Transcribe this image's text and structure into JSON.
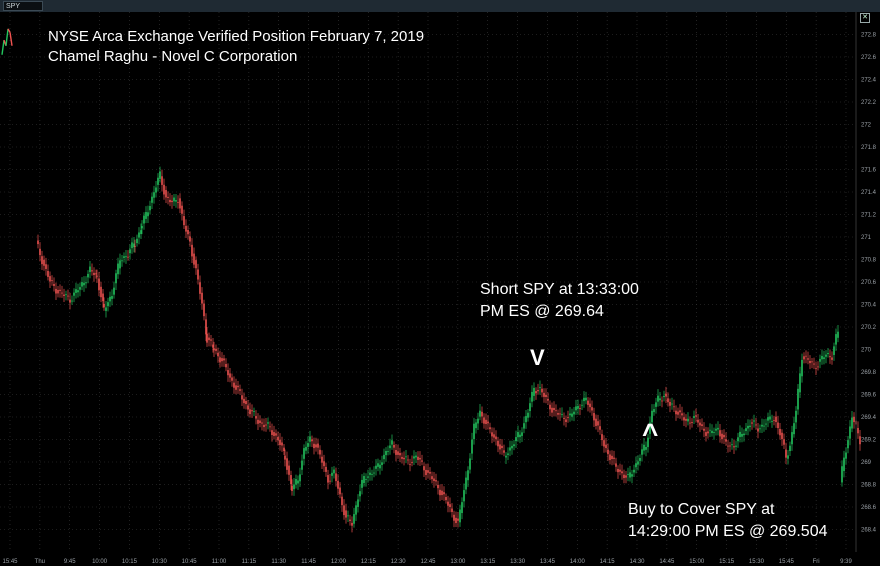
{
  "toolbar": {
    "symbol": "SPY"
  },
  "annotations": {
    "title_line1": "NYSE Arca Exchange Verified Position February 7, 2019",
    "title_line2": "Chamel Raghu - Novel C Corporation",
    "short_line1": "Short SPY at 13:33:00",
    "short_line2": "PM ES @ 269.64",
    "short_marker": "V",
    "cover_line1": "Buy to Cover SPY at",
    "cover_line2": "14:29:00 PM ES @ 269.504",
    "cover_marker": "^"
  },
  "colors": {
    "up": "#22c55e",
    "down": "#ef5350",
    "grid": "#3a3a3a",
    "background": "#000000"
  },
  "chart_data": {
    "type": "candlestick",
    "symbol": "SPY",
    "ylim": [
      268.2,
      273.0
    ],
    "y_ticks": [
      "268.4",
      "268.6",
      "268.8",
      "269",
      "269.2",
      "269.4",
      "269.6",
      "269.8",
      "270",
      "270.2",
      "270.4",
      "270.6",
      "270.8",
      "271",
      "271.2",
      "271.4",
      "271.6",
      "271.8",
      "272",
      "272.2",
      "272.4",
      "272.6",
      "272.8"
    ],
    "x_ticks": [
      "15:45",
      "Thu",
      "9:45",
      "10:00",
      "10:15",
      "10:30",
      "10:45",
      "11:00",
      "11:15",
      "11:30",
      "11:45",
      "12:00",
      "12:15",
      "12:30",
      "12:45",
      "13:00",
      "13:15",
      "13:30",
      "13:45",
      "14:00",
      "14:15",
      "14:30",
      "14:45",
      "15:00",
      "15:15",
      "15:30",
      "15:45",
      "Fri",
      "9:39"
    ],
    "session_closes": [
      [
        0,
        272.62
      ],
      [
        2,
        272.75
      ],
      [
        4,
        272.7
      ],
      [
        6,
        272.85
      ],
      [
        8,
        272.82
      ],
      [
        10,
        272.7
      ]
    ],
    "path": [
      [
        36,
        270.95
      ],
      [
        42,
        270.8
      ],
      [
        50,
        270.6
      ],
      [
        60,
        270.5
      ],
      [
        70,
        270.45
      ],
      [
        80,
        270.55
      ],
      [
        90,
        270.7
      ],
      [
        97,
        270.65
      ],
      [
        104,
        270.35
      ],
      [
        112,
        270.5
      ],
      [
        120,
        270.8
      ],
      [
        128,
        270.85
      ],
      [
        135,
        270.95
      ],
      [
        142,
        271.1
      ],
      [
        150,
        271.3
      ],
      [
        156,
        271.45
      ],
      [
        160,
        271.55
      ],
      [
        166,
        271.35
      ],
      [
        172,
        271.3
      ],
      [
        178,
        271.35
      ],
      [
        184,
        271.1
      ],
      [
        190,
        270.95
      ],
      [
        196,
        270.7
      ],
      [
        202,
        270.4
      ],
      [
        207,
        270.1
      ],
      [
        214,
        270.0
      ],
      [
        222,
        269.9
      ],
      [
        230,
        269.75
      ],
      [
        240,
        269.6
      ],
      [
        250,
        269.45
      ],
      [
        260,
        269.35
      ],
      [
        270,
        269.3
      ],
      [
        278,
        269.2
      ],
      [
        285,
        269.05
      ],
      [
        292,
        268.75
      ],
      [
        298,
        268.85
      ],
      [
        304,
        269.1
      ],
      [
        310,
        269.2
      ],
      [
        316,
        269.15
      ],
      [
        322,
        269.0
      ],
      [
        328,
        268.85
      ],
      [
        334,
        268.9
      ],
      [
        340,
        268.7
      ],
      [
        346,
        268.5
      ],
      [
        352,
        268.45
      ],
      [
        358,
        268.7
      ],
      [
        364,
        268.85
      ],
      [
        370,
        268.9
      ],
      [
        378,
        268.95
      ],
      [
        386,
        269.1
      ],
      [
        392,
        269.15
      ],
      [
        400,
        269.05
      ],
      [
        408,
        269.0
      ],
      [
        416,
        269.05
      ],
      [
        424,
        268.95
      ],
      [
        432,
        268.85
      ],
      [
        440,
        268.75
      ],
      [
        446,
        268.65
      ],
      [
        452,
        268.55
      ],
      [
        458,
        268.45
      ],
      [
        462,
        268.65
      ],
      [
        468,
        268.95
      ],
      [
        474,
        269.3
      ],
      [
        480,
        269.45
      ],
      [
        488,
        269.3
      ],
      [
        496,
        269.2
      ],
      [
        504,
        269.05
      ],
      [
        512,
        269.15
      ],
      [
        520,
        269.25
      ],
      [
        528,
        269.45
      ],
      [
        534,
        269.65
      ],
      [
        540,
        269.65
      ],
      [
        546,
        269.55
      ],
      [
        554,
        269.45
      ],
      [
        562,
        269.4
      ],
      [
        570,
        269.4
      ],
      [
        578,
        269.5
      ],
      [
        586,
        269.55
      ],
      [
        592,
        269.45
      ],
      [
        598,
        269.3
      ],
      [
        604,
        269.15
      ],
      [
        610,
        269.05
      ],
      [
        616,
        268.95
      ],
      [
        622,
        268.9
      ],
      [
        628,
        268.85
      ],
      [
        634,
        268.95
      ],
      [
        640,
        269.05
      ],
      [
        646,
        269.15
      ],
      [
        652,
        269.45
      ],
      [
        658,
        269.55
      ],
      [
        664,
        269.6
      ],
      [
        670,
        269.5
      ],
      [
        678,
        269.45
      ],
      [
        686,
        269.35
      ],
      [
        694,
        269.4
      ],
      [
        702,
        269.3
      ],
      [
        710,
        269.25
      ],
      [
        718,
        269.3
      ],
      [
        726,
        269.15
      ],
      [
        734,
        269.15
      ],
      [
        742,
        269.25
      ],
      [
        750,
        269.35
      ],
      [
        758,
        269.3
      ],
      [
        766,
        269.35
      ],
      [
        774,
        269.4
      ],
      [
        780,
        269.25
      ],
      [
        786,
        269.05
      ],
      [
        790,
        269.15
      ],
      [
        796,
        269.45
      ],
      [
        802,
        269.95
      ],
      [
        808,
        269.9
      ],
      [
        814,
        269.85
      ],
      [
        820,
        269.9
      ],
      [
        826,
        269.95
      ],
      [
        832,
        269.95
      ],
      [
        836,
        270.1
      ],
      [
        838,
        270.15
      ]
    ],
    "gap_path": [
      [
        840,
        268.8
      ],
      [
        844,
        269.05
      ],
      [
        848,
        269.2
      ],
      [
        852,
        269.4
      ],
      [
        856,
        269.3
      ],
      [
        860,
        269.2
      ]
    ]
  }
}
